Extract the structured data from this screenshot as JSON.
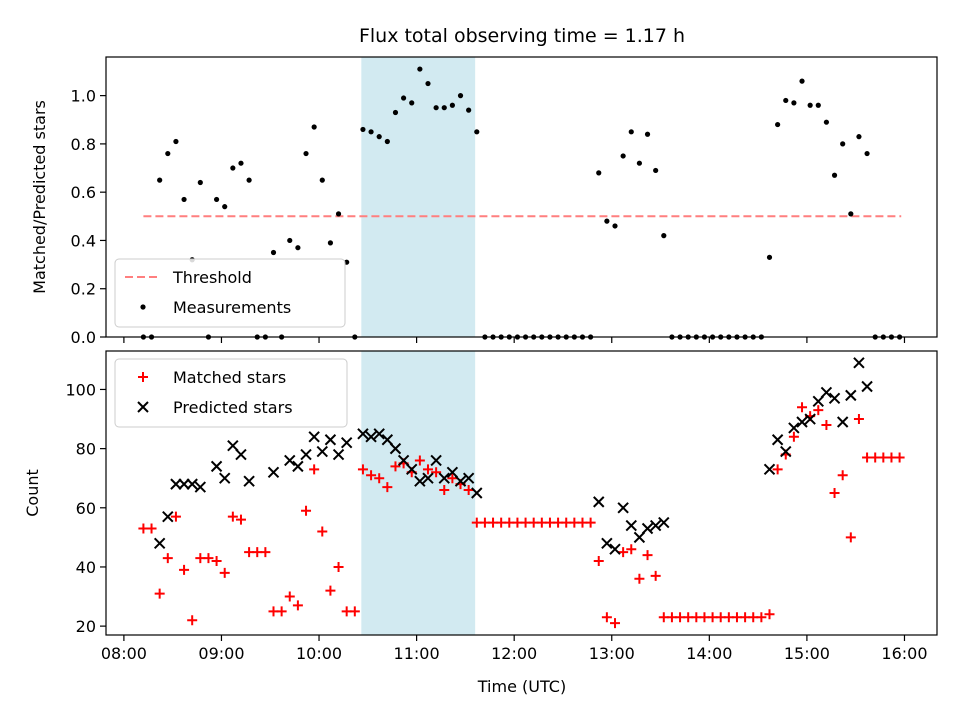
{
  "chart_data": [
    {
      "type": "scatter",
      "title": "Flux total observing time = 1.17 h",
      "xlabel": "",
      "ylabel": "Matched/Predicted stars",
      "xlim": [
        "07:49",
        "16:20"
      ],
      "ylim": [
        0,
        1.16
      ],
      "yticks": [
        0.0,
        0.2,
        0.4,
        0.6,
        0.8,
        1.0
      ],
      "ytick_labels": [
        "0.0",
        "0.2",
        "0.4",
        "0.6",
        "0.8",
        "1.0"
      ],
      "grid": false,
      "legend": "lower-left",
      "shaded_interval": [
        "10:26",
        "11:36"
      ],
      "shade_color": "#add8e6",
      "threshold": {
        "name": "Threshold",
        "y": 0.5,
        "x_start": "08:12",
        "x_end": "15:58",
        "color": "#ff7f7f"
      },
      "series": [
        {
          "name": "Measurements",
          "color": "#000000",
          "marker": "point",
          "points": [
            [
              "08:12",
              0.0
            ],
            [
              "08:17",
              0.0
            ],
            [
              "08:22",
              0.65
            ],
            [
              "08:27",
              0.76
            ],
            [
              "08:32",
              0.81
            ],
            [
              "08:37",
              0.57
            ],
            [
              "08:42",
              0.32
            ],
            [
              "08:47",
              0.64
            ],
            [
              "08:52",
              0.0
            ],
            [
              "08:57",
              0.57
            ],
            [
              "09:02",
              0.54
            ],
            [
              "09:07",
              0.7
            ],
            [
              "09:12",
              0.72
            ],
            [
              "09:17",
              0.65
            ],
            [
              "09:22",
              0.0
            ],
            [
              "09:27",
              0.0
            ],
            [
              "09:32",
              0.35
            ],
            [
              "09:37",
              0.0
            ],
            [
              "09:42",
              0.4
            ],
            [
              "09:47",
              0.37
            ],
            [
              "09:52",
              0.76
            ],
            [
              "09:57",
              0.87
            ],
            [
              "10:02",
              0.65
            ],
            [
              "10:07",
              0.39
            ],
            [
              "10:12",
              0.51
            ],
            [
              "10:17",
              0.31
            ],
            [
              "10:22",
              0.0
            ],
            [
              "10:27",
              0.86
            ],
            [
              "10:32",
              0.85
            ],
            [
              "10:37",
              0.83
            ],
            [
              "10:42",
              0.81
            ],
            [
              "10:47",
              0.93
            ],
            [
              "10:52",
              0.99
            ],
            [
              "10:57",
              0.97
            ],
            [
              "11:02",
              1.11
            ],
            [
              "11:07",
              1.05
            ],
            [
              "11:12",
              0.95
            ],
            [
              "11:17",
              0.95
            ],
            [
              "11:22",
              0.96
            ],
            [
              "11:27",
              1.0
            ],
            [
              "11:32",
              0.94
            ],
            [
              "11:37",
              0.85
            ],
            [
              "11:42",
              0.0
            ],
            [
              "11:47",
              0.0
            ],
            [
              "11:52",
              0.0
            ],
            [
              "11:57",
              0.0
            ],
            [
              "12:02",
              0.0
            ],
            [
              "12:07",
              0.0
            ],
            [
              "12:12",
              0.0
            ],
            [
              "12:17",
              0.0
            ],
            [
              "12:22",
              0.0
            ],
            [
              "12:27",
              0.0
            ],
            [
              "12:32",
              0.0
            ],
            [
              "12:37",
              0.0
            ],
            [
              "12:42",
              0.0
            ],
            [
              "12:47",
              0.0
            ],
            [
              "12:52",
              0.68
            ],
            [
              "12:57",
              0.48
            ],
            [
              "13:02",
              0.46
            ],
            [
              "13:07",
              0.75
            ],
            [
              "13:12",
              0.85
            ],
            [
              "13:17",
              0.72
            ],
            [
              "13:22",
              0.84
            ],
            [
              "13:27",
              0.69
            ],
            [
              "13:32",
              0.42
            ],
            [
              "13:37",
              0.0
            ],
            [
              "13:42",
              0.0
            ],
            [
              "13:47",
              0.0
            ],
            [
              "13:52",
              0.0
            ],
            [
              "13:57",
              0.0
            ],
            [
              "14:02",
              0.0
            ],
            [
              "14:07",
              0.0
            ],
            [
              "14:12",
              0.0
            ],
            [
              "14:17",
              0.0
            ],
            [
              "14:22",
              0.0
            ],
            [
              "14:27",
              0.0
            ],
            [
              "14:32",
              0.0
            ],
            [
              "14:37",
              0.33
            ],
            [
              "14:42",
              0.88
            ],
            [
              "14:47",
              0.98
            ],
            [
              "14:52",
              0.97
            ],
            [
              "14:57",
              1.06
            ],
            [
              "15:02",
              0.96
            ],
            [
              "15:07",
              0.96
            ],
            [
              "15:12",
              0.89
            ],
            [
              "15:17",
              0.67
            ],
            [
              "15:22",
              0.8
            ],
            [
              "15:27",
              0.51
            ],
            [
              "15:32",
              0.83
            ],
            [
              "15:37",
              0.76
            ],
            [
              "15:42",
              0.0
            ],
            [
              "15:47",
              0.0
            ],
            [
              "15:52",
              0.0
            ],
            [
              "15:57",
              0.0
            ]
          ]
        }
      ]
    },
    {
      "type": "scatter",
      "title": "",
      "xlabel": "Time (UTC)",
      "ylabel": "Count",
      "xlim": [
        "07:49",
        "16:20"
      ],
      "ylim": [
        17,
        113
      ],
      "xticks": [
        "08:00",
        "09:00",
        "10:00",
        "11:00",
        "12:00",
        "13:00",
        "14:00",
        "15:00",
        "16:00"
      ],
      "yticks": [
        20,
        40,
        60,
        80,
        100
      ],
      "ytick_labels": [
        "20",
        "40",
        "60",
        "80",
        "100"
      ],
      "grid": false,
      "legend": "upper-left",
      "shaded_interval": [
        "10:26",
        "11:36"
      ],
      "shade_color": "#add8e6",
      "series": [
        {
          "name": "Matched stars",
          "color": "#ff0000",
          "marker": "plus",
          "points": [
            [
              "08:12",
              53
            ],
            [
              "08:17",
              53
            ],
            [
              "08:22",
              31
            ],
            [
              "08:27",
              43
            ],
            [
              "08:32",
              57
            ],
            [
              "08:37",
              39
            ],
            [
              "08:42",
              22
            ],
            [
              "08:47",
              43
            ],
            [
              "08:52",
              43
            ],
            [
              "08:57",
              42
            ],
            [
              "09:02",
              38
            ],
            [
              "09:07",
              57
            ],
            [
              "09:12",
              56
            ],
            [
              "09:17",
              45
            ],
            [
              "09:22",
              45
            ],
            [
              "09:27",
              45
            ],
            [
              "09:32",
              25
            ],
            [
              "09:37",
              25
            ],
            [
              "09:42",
              30
            ],
            [
              "09:47",
              27
            ],
            [
              "09:52",
              59
            ],
            [
              "09:57",
              73
            ],
            [
              "10:02",
              52
            ],
            [
              "10:07",
              32
            ],
            [
              "10:12",
              40
            ],
            [
              "10:17",
              25
            ],
            [
              "10:22",
              25
            ],
            [
              "10:27",
              73
            ],
            [
              "10:32",
              71
            ],
            [
              "10:37",
              70
            ],
            [
              "10:42",
              67
            ],
            [
              "10:47",
              74
            ],
            [
              "10:52",
              75
            ],
            [
              "10:57",
              72
            ],
            [
              "11:02",
              76
            ],
            [
              "11:07",
              73
            ],
            [
              "11:12",
              72
            ],
            [
              "11:17",
              66
            ],
            [
              "11:22",
              70
            ],
            [
              "11:27",
              68
            ],
            [
              "11:32",
              66
            ],
            [
              "11:37",
              55
            ],
            [
              "11:42",
              55
            ],
            [
              "11:47",
              55
            ],
            [
              "11:52",
              55
            ],
            [
              "11:57",
              55
            ],
            [
              "12:02",
              55
            ],
            [
              "12:07",
              55
            ],
            [
              "12:12",
              55
            ],
            [
              "12:17",
              55
            ],
            [
              "12:22",
              55
            ],
            [
              "12:27",
              55
            ],
            [
              "12:32",
              55
            ],
            [
              "12:37",
              55
            ],
            [
              "12:42",
              55
            ],
            [
              "12:47",
              55
            ],
            [
              "12:52",
              42
            ],
            [
              "12:57",
              23
            ],
            [
              "13:02",
              21
            ],
            [
              "13:07",
              45
            ],
            [
              "13:12",
              46
            ],
            [
              "13:17",
              36
            ],
            [
              "13:22",
              44
            ],
            [
              "13:27",
              37
            ],
            [
              "13:32",
              23
            ],
            [
              "13:37",
              23
            ],
            [
              "13:42",
              23
            ],
            [
              "13:47",
              23
            ],
            [
              "13:52",
              23
            ],
            [
              "13:57",
              23
            ],
            [
              "14:02",
              23
            ],
            [
              "14:07",
              23
            ],
            [
              "14:12",
              23
            ],
            [
              "14:17",
              23
            ],
            [
              "14:22",
              23
            ],
            [
              "14:27",
              23
            ],
            [
              "14:32",
              23
            ],
            [
              "14:37",
              24
            ],
            [
              "14:42",
              73
            ],
            [
              "14:47",
              78
            ],
            [
              "14:52",
              84
            ],
            [
              "14:57",
              94
            ],
            [
              "15:02",
              91
            ],
            [
              "15:07",
              93
            ],
            [
              "15:12",
              88
            ],
            [
              "15:17",
              65
            ],
            [
              "15:22",
              71
            ],
            [
              "15:27",
              50
            ],
            [
              "15:32",
              90
            ],
            [
              "15:37",
              77
            ],
            [
              "15:42",
              77
            ],
            [
              "15:47",
              77
            ],
            [
              "15:52",
              77
            ],
            [
              "15:57",
              77
            ]
          ]
        },
        {
          "name": "Predicted stars",
          "color": "#000000",
          "marker": "x",
          "points": [
            [
              "08:22",
              48
            ],
            [
              "08:27",
              57
            ],
            [
              "08:32",
              68
            ],
            [
              "08:37",
              68
            ],
            [
              "08:42",
              68
            ],
            [
              "08:47",
              67
            ],
            [
              "08:57",
              74
            ],
            [
              "09:02",
              70
            ],
            [
              "09:07",
              81
            ],
            [
              "09:12",
              78
            ],
            [
              "09:17",
              69
            ],
            [
              "09:32",
              72
            ],
            [
              "09:42",
              76
            ],
            [
              "09:47",
              74
            ],
            [
              "09:52",
              78
            ],
            [
              "09:57",
              84
            ],
            [
              "10:02",
              79
            ],
            [
              "10:07",
              83
            ],
            [
              "10:12",
              78
            ],
            [
              "10:17",
              82
            ],
            [
              "10:27",
              85
            ],
            [
              "10:32",
              84
            ],
            [
              "10:37",
              85
            ],
            [
              "10:42",
              83
            ],
            [
              "10:47",
              80
            ],
            [
              "10:52",
              76
            ],
            [
              "10:57",
              73
            ],
            [
              "11:02",
              69
            ],
            [
              "11:07",
              70
            ],
            [
              "11:12",
              76
            ],
            [
              "11:17",
              70
            ],
            [
              "11:22",
              72
            ],
            [
              "11:27",
              69
            ],
            [
              "11:32",
              70
            ],
            [
              "11:37",
              65
            ],
            [
              "12:52",
              62
            ],
            [
              "12:57",
              48
            ],
            [
              "13:02",
              46
            ],
            [
              "13:07",
              60
            ],
            [
              "13:12",
              54
            ],
            [
              "13:17",
              50
            ],
            [
              "13:22",
              53
            ],
            [
              "13:27",
              54
            ],
            [
              "13:32",
              55
            ],
            [
              "14:37",
              73
            ],
            [
              "14:42",
              83
            ],
            [
              "14:47",
              79
            ],
            [
              "14:52",
              87
            ],
            [
              "14:57",
              89
            ],
            [
              "15:02",
              90
            ],
            [
              "15:07",
              96
            ],
            [
              "15:12",
              99
            ],
            [
              "15:17",
              97
            ],
            [
              "15:22",
              89
            ],
            [
              "15:27",
              98
            ],
            [
              "15:32",
              109
            ],
            [
              "15:37",
              101
            ]
          ]
        }
      ]
    }
  ]
}
